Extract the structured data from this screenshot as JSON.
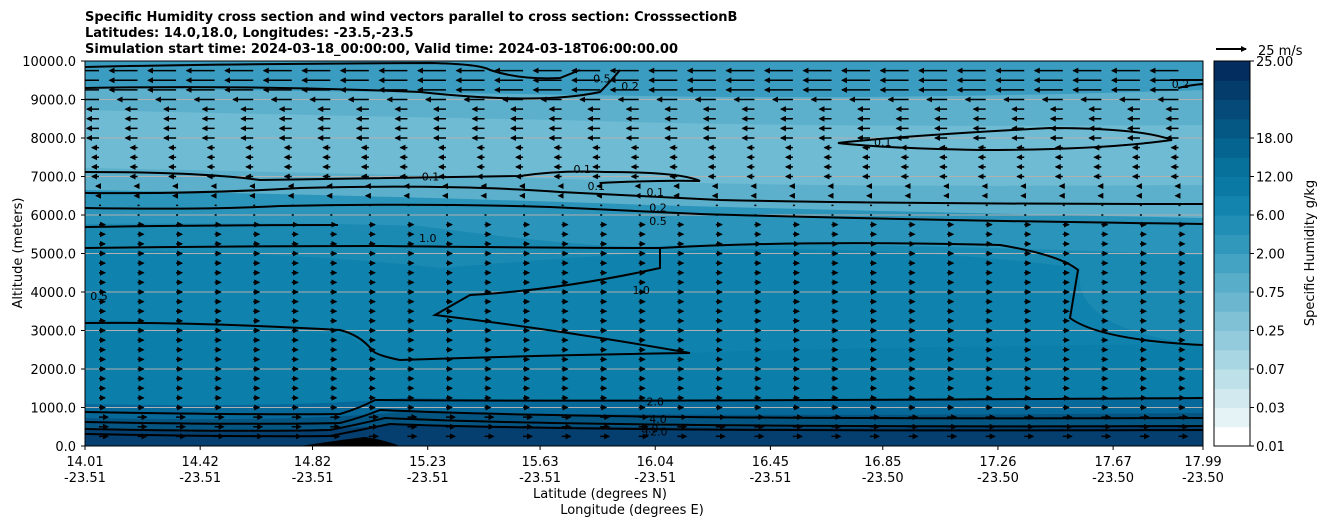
{
  "chart_data": {
    "type": "contour",
    "title_lines": [
      "Specific Humidity cross section and wind vectors parallel to cross section: CrosssectionB",
      "Latitudes: 14.0,18.0, Longitudes: -23.5,-23.5",
      "Simulation start time: 2024-03-18_00:00:00, Valid time: 2024-03-18T06:00:00.00"
    ],
    "xlabel_lat": "Latitude (degrees N)",
    "xlabel_lon": "Longitude (degrees E)",
    "ylabel": "Altitude (meters)",
    "ylim": [
      0,
      10000
    ],
    "grid": "horizontal",
    "x_ticks": [
      {
        "lat": "14.01",
        "lon": "-23.51"
      },
      {
        "lat": "14.42",
        "lon": "-23.51"
      },
      {
        "lat": "14.82",
        "lon": "-23.51"
      },
      {
        "lat": "15.23",
        "lon": "-23.51"
      },
      {
        "lat": "15.63",
        "lon": "-23.51"
      },
      {
        "lat": "16.04",
        "lon": "-23.51"
      },
      {
        "lat": "16.45",
        "lon": "-23.51"
      },
      {
        "lat": "16.85",
        "lon": "-23.50"
      },
      {
        "lat": "17.26",
        "lon": "-23.50"
      },
      {
        "lat": "17.67",
        "lon": "-23.50"
      },
      {
        "lat": "17.99",
        "lon": "-23.50"
      }
    ],
    "y_ticks": [
      {
        "value": 0,
        "label": "0.0"
      },
      {
        "value": 1000,
        "label": "1000.0"
      },
      {
        "value": 2000,
        "label": "2000.0"
      },
      {
        "value": 3000,
        "label": "3000.0"
      },
      {
        "value": 4000,
        "label": "4000.0"
      },
      {
        "value": 5000,
        "label": "5000.0"
      },
      {
        "value": 6000,
        "label": "6000.0"
      },
      {
        "value": 7000,
        "label": "7000.0"
      },
      {
        "value": 8000,
        "label": "8000.0"
      },
      {
        "value": 9000,
        "label": "9000.0"
      },
      {
        "value": 10000,
        "label": "10000.0"
      }
    ],
    "colorbar": {
      "label": "Specific Humidity g/kg",
      "tick_labels": [
        "0.01",
        "0.03",
        "0.07",
        "0.25",
        "0.75",
        "2.00",
        "6.00",
        "12.00",
        "18.00",
        "25.00"
      ],
      "levels": 20,
      "colors": [
        "#ffffff",
        "#e6f3f6",
        "#d2eaef",
        "#bde0e9",
        "#a9d6e3",
        "#94cbdc",
        "#80c1d6",
        "#6cb7cf",
        "#58adc9",
        "#44a2c2",
        "#3198bc",
        "#208eb5",
        "#1384ae",
        "#0a7aa5",
        "#07709b",
        "#066490",
        "#055784",
        "#054a78",
        "#043c6c",
        "#032d5e"
      ]
    },
    "quiver_key": {
      "label": "25 m/s",
      "speed_ms": 25
    },
    "contour_levels": [
      0.1,
      0.2,
      0.5,
      1.0,
      2.0,
      4.0,
      8.0,
      12.0
    ],
    "contour_labels": [
      {
        "text": "0.5",
        "lat": 15.85,
        "alt": 9550
      },
      {
        "text": "0.2",
        "lat": 15.95,
        "alt": 9350
      },
      {
        "text": "0.2",
        "lat": 17.91,
        "alt": 9400
      },
      {
        "text": "0.1",
        "lat": 16.85,
        "alt": 7900
      },
      {
        "text": "0.1",
        "lat": 15.24,
        "alt": 7000
      },
      {
        "text": "0.1",
        "lat": 15.78,
        "alt": 7200
      },
      {
        "text": "0.1",
        "lat": 15.83,
        "alt": 6750
      },
      {
        "text": "0.1",
        "lat": 16.04,
        "alt": 6600
      },
      {
        "text": "0.2",
        "lat": 16.05,
        "alt": 6200
      },
      {
        "text": "0.5",
        "lat": 16.05,
        "alt": 5850
      },
      {
        "text": "1.0",
        "lat": 15.23,
        "alt": 5400
      },
      {
        "text": "1.0",
        "lat": 15.99,
        "alt": 4050
      },
      {
        "text": "0.5",
        "lat": 14.06,
        "alt": 3900
      },
      {
        "text": "2.0",
        "lat": 16.04,
        "alt": 1150
      },
      {
        "text": "4.0",
        "lat": 16.05,
        "alt": 700
      },
      {
        "text": "8.0",
        "lat": 16.02,
        "alt": 450
      },
      {
        "text": "12.0",
        "lat": 16.04,
        "alt": 380
      }
    ],
    "wind_note": "Vectors: westward (easterly) flow above ~6500 m, strongest near 9000-9500 m; weak eastward flow below ~6000 m."
  }
}
